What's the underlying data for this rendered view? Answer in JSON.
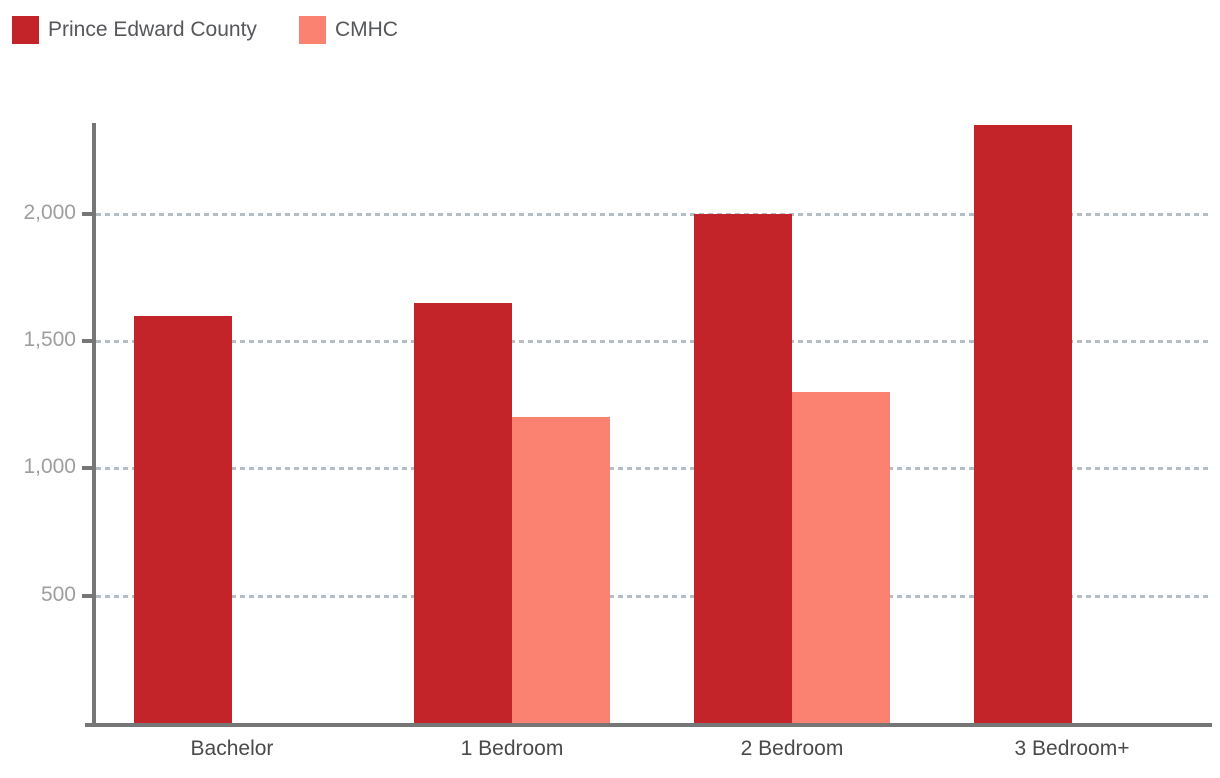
{
  "legend": {
    "items": [
      {
        "label": "Prince Edward County",
        "color": "#c3242a"
      },
      {
        "label": "CMHC",
        "color": "#fb8170"
      }
    ]
  },
  "chart_data": {
    "type": "bar",
    "title": "",
    "xlabel": "",
    "ylabel": "",
    "categories": [
      "Bachelor",
      "1 Bedroom",
      "2 Bedroom",
      "3 Bedroom+"
    ],
    "series": [
      {
        "name": "Prince Edward County",
        "color": "#c3242a",
        "values": [
          1600,
          1650,
          2000,
          2350
        ]
      },
      {
        "name": "CMHC",
        "color": "#fb8170",
        "values": [
          null,
          1200,
          1300,
          null
        ]
      }
    ],
    "yticks": [
      500,
      1000,
      1500,
      2000
    ],
    "ytick_labels": [
      "500",
      "1,000",
      "1,500",
      "2,000"
    ],
    "ylim": [
      0,
      2356
    ],
    "grid": "horizontal-dashed",
    "legend_position": "top-left"
  },
  "colors": {
    "axis": "#767676",
    "gridline": "#b3bdc6",
    "ytick_label": "#9e9e9e",
    "xtick_label": "#4a4a4a",
    "legend_label": "#56575b",
    "background": "#ffffff"
  }
}
